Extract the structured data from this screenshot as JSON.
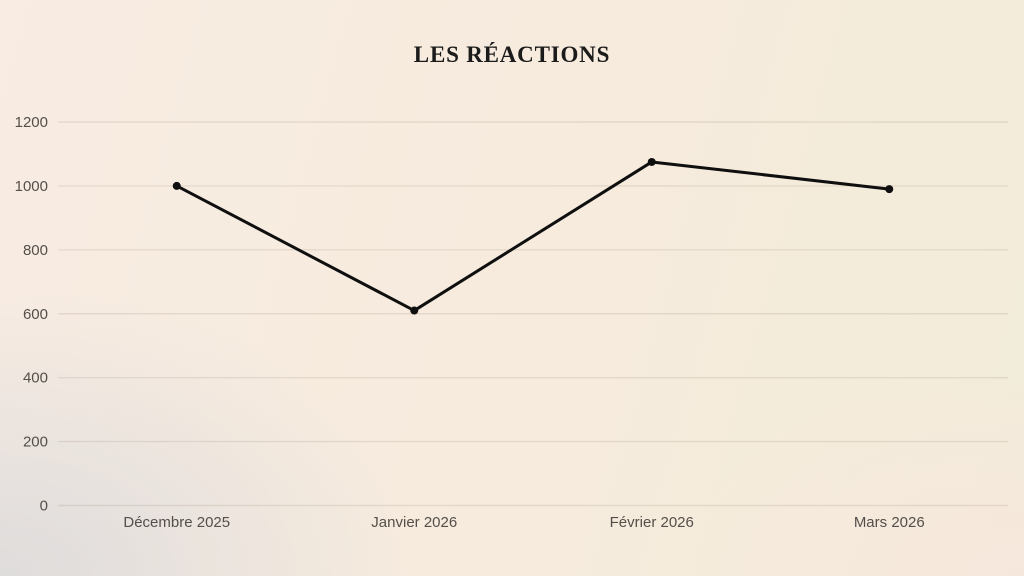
{
  "title": "LES RÉACTIONS",
  "chart_data": {
    "type": "line",
    "title": "LES RÉACTIONS",
    "categories": [
      "Décembre 2025",
      "Janvier 2026",
      "Février 2026",
      "Mars 2026"
    ],
    "values": [
      1000,
      610,
      1075,
      990
    ],
    "xlabel": "",
    "ylabel": "",
    "ylim": [
      0,
      1200
    ],
    "yticks": [
      0,
      200,
      400,
      600,
      800,
      1000,
      1200
    ],
    "grid": true,
    "legend": false,
    "marker": "circle"
  },
  "colors": {
    "line": "#0f0f0f",
    "marker": "#0f0f0f",
    "axis_label": "#544f4a",
    "gridline": "#6b5a48",
    "title": "#1b1b1b",
    "background_top_left": "#f8ece3",
    "background_top_right": "#f2ecda",
    "background_bottom_left": "#e9e8e7",
    "background_bottom_right": "#f8ece5"
  }
}
